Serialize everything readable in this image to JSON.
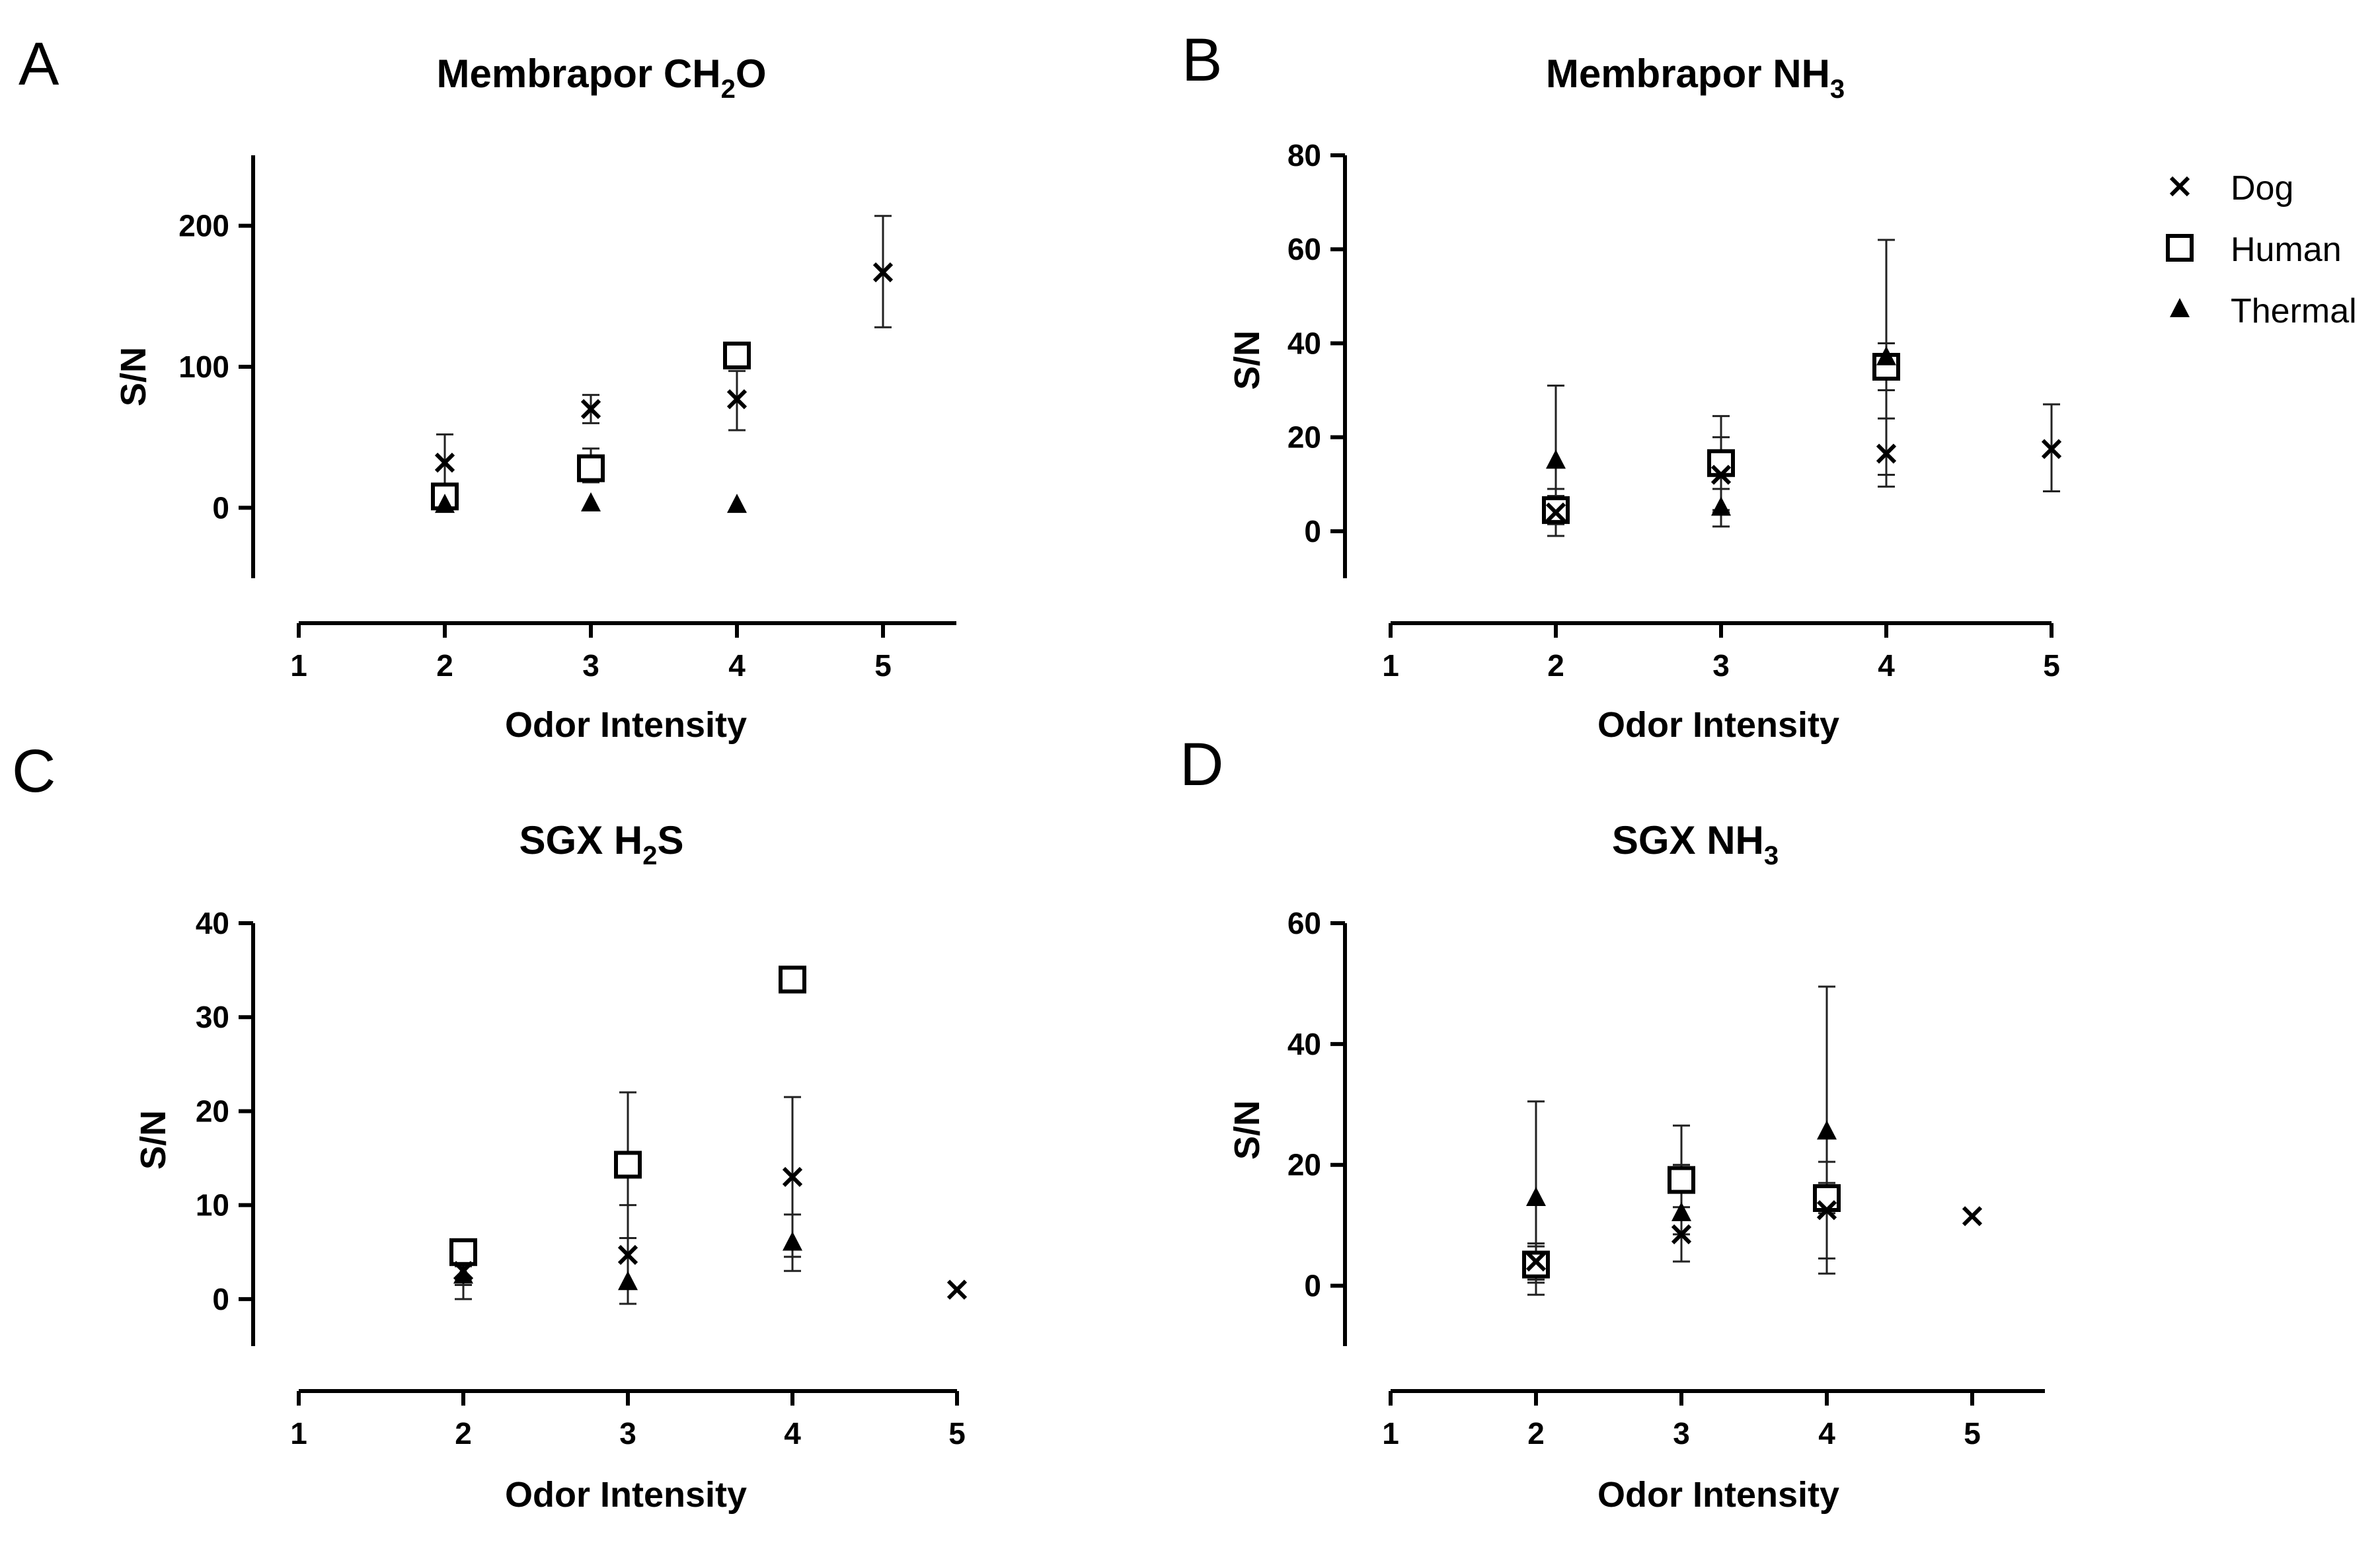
{
  "legend": [
    {
      "name": "Dog",
      "marker": "x"
    },
    {
      "name": "Human",
      "marker": "square"
    },
    {
      "name": "Thermal",
      "marker": "triangle"
    }
  ],
  "chart_data": [
    {
      "panel": "A",
      "type": "scatter",
      "title": "Membrapor CH",
      "title_sub": "2",
      "title_tail": "O",
      "xlabel": "Odor Intensity",
      "ylabel": "S/N",
      "xlim": [
        1,
        5.5
      ],
      "xticks": [
        1,
        2,
        3,
        4,
        5
      ],
      "ylim": [
        -50,
        250
      ],
      "yticks": [
        0,
        100,
        200
      ],
      "series": [
        {
          "name": "Dog",
          "marker": "x",
          "points": [
            {
              "x": 2,
              "y": 32,
              "lo": 12,
              "hi": 52
            },
            {
              "x": 3,
              "y": 70,
              "lo": 60,
              "hi": 80
            },
            {
              "x": 4,
              "y": 77,
              "lo": 55,
              "hi": 97
            },
            {
              "x": 5,
              "y": 167,
              "lo": 128,
              "hi": 207
            }
          ]
        },
        {
          "name": "Human",
          "marker": "square",
          "points": [
            {
              "x": 2,
              "y": 8,
              "lo": 2,
              "hi": 14
            },
            {
              "x": 3,
              "y": 28,
              "lo": 18,
              "hi": 42
            },
            {
              "x": 4,
              "y": 108,
              "lo": 100,
              "hi": 116
            }
          ]
        },
        {
          "name": "Thermal",
          "marker": "triangle",
          "points": [
            {
              "x": 2,
              "y": 2
            },
            {
              "x": 3,
              "y": 3
            },
            {
              "x": 4,
              "y": 2
            }
          ]
        }
      ]
    },
    {
      "panel": "B",
      "type": "scatter",
      "title": "Membrapor NH",
      "title_sub": "3",
      "title_tail": "",
      "xlabel": "Odor Intensity",
      "ylabel": "S/N",
      "xlim": [
        1,
        5
      ],
      "xticks": [
        1,
        2,
        3,
        4,
        5
      ],
      "ylim": [
        -10,
        80
      ],
      "yticks": [
        0,
        20,
        40,
        60,
        80
      ],
      "series": [
        {
          "name": "Dog",
          "marker": "x",
          "points": [
            {
              "x": 2,
              "y": 4,
              "lo": -1,
              "hi": 9
            },
            {
              "x": 3,
              "y": 12,
              "lo": 4,
              "hi": 20
            },
            {
              "x": 4,
              "y": 16.5,
              "lo": 9.5,
              "hi": 24
            },
            {
              "x": 5,
              "y": 17.5,
              "lo": 8.5,
              "hi": 27
            }
          ]
        },
        {
          "name": "Human",
          "marker": "square",
          "points": [
            {
              "x": 2,
              "y": 4.5,
              "lo": 1.5,
              "hi": 7.5
            },
            {
              "x": 3,
              "y": 14.5,
              "lo": 4.5,
              "hi": 24.5
            },
            {
              "x": 4,
              "y": 35,
              "lo": 30,
              "hi": 40
            }
          ]
        },
        {
          "name": "Thermal",
          "marker": "triangle",
          "points": [
            {
              "x": 2,
              "y": 15,
              "lo": -1,
              "hi": 31
            },
            {
              "x": 3,
              "y": 5,
              "lo": 1,
              "hi": 9
            },
            {
              "x": 4,
              "y": 37,
              "lo": 12,
              "hi": 62
            }
          ]
        }
      ]
    },
    {
      "panel": "C",
      "type": "scatter",
      "title": "SGX H",
      "title_sub": "2",
      "title_tail": "S",
      "xlabel": "Odor Intensity",
      "ylabel": "S/N",
      "xlim": [
        1,
        5
      ],
      "xticks": [
        1,
        2,
        3,
        4,
        5
      ],
      "ylim": [
        -5,
        40
      ],
      "yticks": [
        0,
        10,
        20,
        30,
        40
      ],
      "series": [
        {
          "name": "Dog",
          "marker": "x",
          "points": [
            {
              "x": 2,
              "y": 3,
              "lo": 0,
              "hi": 5
            },
            {
              "x": 3,
              "y": 4.7,
              "lo": -0.5,
              "hi": 10
            },
            {
              "x": 4,
              "y": 13,
              "lo": 4.5,
              "hi": 21.5
            },
            {
              "x": 5,
              "y": 1
            }
          ]
        },
        {
          "name": "Human",
          "marker": "square",
          "points": [
            {
              "x": 2,
              "y": 5,
              "lo": 4,
              "hi": 6
            },
            {
              "x": 3,
              "y": 14.3,
              "lo": 6.5,
              "hi": 22
            },
            {
              "x": 4,
              "y": 34
            }
          ]
        },
        {
          "name": "Thermal",
          "marker": "triangle",
          "points": [
            {
              "x": 2,
              "y": 2.5,
              "lo": 1.5,
              "hi": 3.5
            },
            {
              "x": 3,
              "y": 1.8
            },
            {
              "x": 4,
              "y": 6,
              "lo": 3,
              "hi": 9
            }
          ]
        }
      ]
    },
    {
      "panel": "D",
      "type": "scatter",
      "title": "SGX NH",
      "title_sub": "3",
      "title_tail": "",
      "xlabel": "Odor Intensity",
      "ylabel": "S/N",
      "xlim": [
        1,
        5.5
      ],
      "xticks": [
        1,
        2,
        3,
        4,
        5
      ],
      "ylim": [
        -10,
        60
      ],
      "yticks": [
        0,
        20,
        40,
        60
      ],
      "series": [
        {
          "name": "Dog",
          "marker": "x",
          "points": [
            {
              "x": 2,
              "y": 4,
              "lo": 1,
              "hi": 7
            },
            {
              "x": 3,
              "y": 8.5,
              "lo": 4,
              "hi": 13
            },
            {
              "x": 4,
              "y": 12.5,
              "lo": 4.5,
              "hi": 20.5
            },
            {
              "x": 5,
              "y": 11.5
            }
          ]
        },
        {
          "name": "Human",
          "marker": "square",
          "points": [
            {
              "x": 2,
              "y": 3.5,
              "lo": 0.5,
              "hi": 6.5
            },
            {
              "x": 3,
              "y": 17.5,
              "lo": 8.5,
              "hi": 26.5
            },
            {
              "x": 4,
              "y": 14.5,
              "lo": 12,
              "hi": 17
            }
          ]
        },
        {
          "name": "Thermal",
          "marker": "triangle",
          "points": [
            {
              "x": 2,
              "y": 14.5,
              "lo": -1.5,
              "hi": 30.5
            },
            {
              "x": 3,
              "y": 12,
              "lo": 4,
              "hi": 20
            },
            {
              "x": 4,
              "y": 25.5,
              "lo": 2,
              "hi": 49.5
            }
          ]
        }
      ]
    }
  ]
}
